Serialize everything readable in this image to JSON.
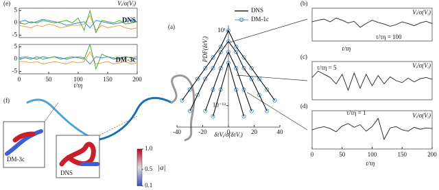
{
  "chart_data": [
    {
      "type": "line",
      "label": "(e)",
      "ylabel": "Vᵢ/σ(Vᵢ)",
      "annotation": "DNS",
      "x": [
        0,
        10,
        20,
        30,
        40,
        50,
        60,
        70,
        80,
        90,
        100,
        110,
        120,
        130,
        140,
        150,
        160,
        170,
        180,
        190,
        200
      ],
      "xlim": [
        0,
        200
      ],
      "ylim": [
        -6,
        6
      ],
      "yticks": [
        -5,
        0,
        5
      ],
      "series": [
        {
          "color": "#2a7fd4",
          "values": [
            0.5,
            1,
            0,
            0.5,
            1.5,
            1,
            0.5,
            0,
            -1,
            -0.5,
            0,
            0.5,
            -2,
            1,
            0.5,
            0,
            -0.5,
            0,
            0.5,
            1,
            0.5
          ]
        },
        {
          "color": "#e8962a",
          "values": [
            -1,
            -1.5,
            -2,
            -1,
            -1.5,
            -0.5,
            -1,
            -2,
            -1.5,
            -1,
            -1,
            -0.5,
            3,
            -3,
            -1,
            -2,
            -1.5,
            -1,
            -2,
            -2.5,
            -2
          ]
        },
        {
          "color": "#3aa02a",
          "values": [
            0,
            -0.5,
            0.5,
            0,
            1,
            0.5,
            0,
            0.5,
            1,
            0,
            2,
            -3,
            5,
            -4,
            1,
            0.5,
            0,
            1,
            -0.5,
            0,
            0.5
          ]
        }
      ]
    },
    {
      "type": "line",
      "annotation": "DM-3c",
      "xlabel": "t/τη",
      "x": [
        0,
        10,
        20,
        30,
        40,
        50,
        60,
        70,
        80,
        90,
        100,
        110,
        120,
        130,
        140,
        150,
        160,
        170,
        180,
        190,
        200
      ],
      "xlim": [
        0,
        200
      ],
      "ylim": [
        -6,
        6
      ],
      "yticks": [
        -5,
        0,
        5
      ],
      "xticks": [
        0,
        50,
        100,
        150,
        200
      ],
      "series": [
        {
          "color": "#2a7fd4",
          "values": [
            0.5,
            1,
            0.5,
            0,
            1,
            0.5,
            1,
            0.5,
            0,
            0.5,
            1,
            0.5,
            -2,
            1,
            0.5,
            1,
            0,
            0.5,
            1,
            0.5,
            0
          ]
        },
        {
          "color": "#e8962a",
          "values": [
            -1,
            -1,
            -1.5,
            -1,
            -2,
            -1.5,
            -1,
            -1.5,
            -2,
            -1,
            -1.5,
            -1,
            3,
            -2,
            -1.5,
            -1,
            -2,
            -1.5,
            -1,
            -2,
            -1.5
          ]
        },
        {
          "color": "#3aa02a",
          "values": [
            0,
            0.5,
            0,
            1,
            0,
            0.5,
            1,
            0,
            0.5,
            1,
            0.5,
            0,
            6,
            -4,
            2,
            1,
            0.5,
            0,
            1,
            0.5,
            1
          ]
        }
      ]
    },
    {
      "type": "pdf",
      "label": "(a)",
      "ylabel": "PDF(δτVᵢ)",
      "xlabel": "δτVᵢ/σ(δτVᵢ)",
      "log": true,
      "x": [
        -36,
        -30,
        -24,
        -18,
        -12,
        -6,
        0,
        6,
        12,
        18,
        24,
        30,
        36
      ],
      "xlim": [
        -40,
        40
      ],
      "ylim": [
        1e-17,
        100
      ],
      "xticks": [
        -40,
        -20,
        0,
        20,
        40
      ],
      "yticks": [
        {
          "value": 10,
          "label": "10¹"
        },
        {
          "value": 1e-13,
          "label": "10⁻¹³"
        }
      ],
      "series": [
        {
          "name": "DNS",
          "color": "#000000",
          "values": [
            [
              1e-12,
              1e-10,
              1e-08,
              1e-06,
              0.0001,
              0.01,
              10,
              0.01,
              0.0001,
              1e-06,
              1e-08,
              1e-10,
              1e-12
            ],
            [
              null,
              1e-14,
              1e-11,
              1e-08,
              1e-06,
              0.001,
              0.1,
              0.001,
              1e-06,
              1e-08,
              1e-11,
              1e-14,
              null
            ],
            [
              null,
              null,
              null,
              1e-14,
              1e-10,
              1e-06,
              0.001,
              1e-06,
              1e-10,
              1e-14,
              null,
              null,
              null
            ],
            [
              null,
              null,
              null,
              null,
              1e-15,
              1e-10,
              1e-05,
              1e-10,
              1e-15,
              null,
              null,
              null,
              null
            ]
          ]
        },
        {
          "name": "DM-1c",
          "color": "#4a90c8",
          "values": [
            [
              1e-12,
              1e-10,
              1e-08,
              1e-06,
              0.0001,
              0.01,
              10,
              0.01,
              0.0001,
              1e-06,
              1e-08,
              1e-10,
              1e-12
            ],
            [
              null,
              1e-14,
              1e-11,
              1e-08,
              1e-06,
              0.001,
              0.1,
              0.001,
              1e-06,
              1e-08,
              1e-11,
              1e-14,
              null
            ],
            [
              null,
              null,
              null,
              1e-14,
              1e-10,
              1e-06,
              0.001,
              1e-06,
              1e-10,
              1e-14,
              null,
              null,
              null
            ],
            [
              null,
              null,
              null,
              null,
              1e-15,
              1e-10,
              1e-05,
              1e-10,
              1e-15,
              null,
              null,
              null,
              null
            ]
          ]
        }
      ]
    },
    {
      "type": "line",
      "label": "(b)",
      "ylabel": "Vᵢ/σ(Vᵢ)",
      "xlabel": "t/τη",
      "annotation": "τ/τη = 100",
      "x": [
        0,
        10,
        20,
        30,
        40,
        50,
        60,
        70,
        80,
        90,
        100,
        110,
        120,
        130,
        140,
        150,
        160,
        170,
        180,
        190,
        200
      ],
      "xlim": [
        0,
        200
      ],
      "ylim": [
        -3,
        3
      ],
      "series": [
        {
          "color": "#222222",
          "values": [
            0.5,
            0.8,
            1,
            0.5,
            1.2,
            0.8,
            0.3,
            0.6,
            -0.5,
            0.2,
            0.8,
            0.4,
            0.1,
            -0.3,
            0,
            0.5,
            0.2,
            -0.2,
            0.3,
            0.6,
            0.2
          ]
        }
      ]
    },
    {
      "type": "line",
      "label": "(c)",
      "ylabel": "Vᵢ/σ(Vᵢ)",
      "annotation": "τ/τη = 5",
      "x": [
        0,
        10,
        20,
        30,
        40,
        50,
        60,
        70,
        80,
        90,
        100,
        110,
        120,
        130,
        140,
        150,
        160,
        170,
        180,
        190,
        200
      ],
      "xlim": [
        0,
        200
      ],
      "ylim": [
        -3,
        3
      ],
      "series": [
        {
          "color": "#222222",
          "values": [
            0.5,
            1.5,
            1,
            0.5,
            -0.5,
            1,
            -1.5,
            1.2,
            -1.2,
            1,
            -0.8,
            0.8,
            -0.5,
            0.6,
            0,
            -0.3,
            0.4,
            -0.2,
            0.3,
            0.5,
            0.2
          ]
        }
      ]
    },
    {
      "type": "line",
      "label": "(d)",
      "ylabel": "Vᵢ/σ(Vᵢ)",
      "xlabel": "t/τη",
      "annotation": "τ/τη = 1",
      "x": [
        0,
        10,
        20,
        30,
        40,
        50,
        60,
        70,
        80,
        90,
        100,
        110,
        120,
        130,
        140,
        150,
        160,
        170,
        180,
        190,
        200
      ],
      "xlim": [
        0,
        200
      ],
      "ylim": [
        -3,
        3
      ],
      "xticks": [
        0,
        50,
        100,
        150,
        200
      ],
      "series": [
        {
          "color": "#222222",
          "values": [
            0,
            0.3,
            0.5,
            0.2,
            -0.3,
            0.6,
            1,
            0.4,
            0.8,
            -0.2,
            0.5,
            1.8,
            -1.5,
            0.3,
            0.5,
            0,
            -0.2,
            0.4,
            0.1,
            0.3,
            0.2
          ]
        }
      ]
    },
    {
      "type": "colorbar",
      "label": "|a|",
      "ylim": [
        0.1,
        1
      ],
      "yticks": [
        {
          "value": 1,
          "label": "1.0"
        },
        0.5,
        0.1
      ],
      "colors": [
        "#3b4cc0",
        "#dddddd",
        "#b40426"
      ]
    }
  ],
  "panel_f": {
    "label": "(f)",
    "insets": [
      "DM-3c",
      "DNS"
    ]
  }
}
